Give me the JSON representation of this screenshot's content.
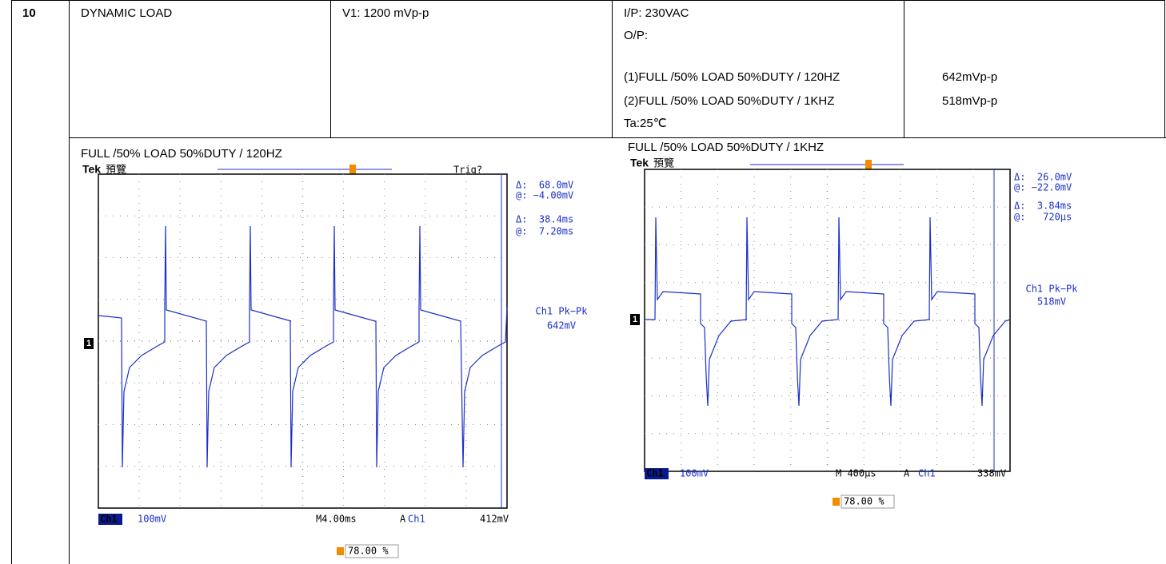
{
  "table": {
    "row_number": "10",
    "item": "DYNAMIC LOAD",
    "spec": "V1: 1200 mVp-p",
    "conditions": [
      "I/P: 230VAC",
      "O/P:",
      "(1)FULL /50% LOAD 50%DUTY / 120HZ",
      "(2)FULL /50% LOAD 50%DUTY / 1KHZ",
      "Ta:25℃"
    ],
    "results": [
      "642mVp-p",
      "518mVp-p"
    ]
  },
  "scopes": [
    {
      "caption": "FULL /50% LOAD 50%DUTY / 120HZ",
      "brand": "Tek",
      "mode": "預覽",
      "trigger_status": "Trig?",
      "marker": "1",
      "readouts": [
        "Δ:  68.0mV",
        "@: −4.00mV",
        "Δ:  38.4ms",
        "@:  7.20ms"
      ],
      "measure_label": "Ch1 Pk−Pk",
      "measure_value": "642mV",
      "channel": "Ch1",
      "scale": "100mV",
      "timebase": "M4.00ms",
      "trigger_mode": "A",
      "trigger_source": "Ch1",
      "trigger_level": "412mV",
      "trigger_position": "78.00 %"
    },
    {
      "caption": "FULL /50% LOAD 50%DUTY / 1KHZ",
      "brand": "Tek",
      "mode": "預覽",
      "marker": "1",
      "readouts": [
        "Δ:  26.0mV",
        "@: −22.0mV",
        "Δ:  3.84ms",
        "@:   720µs"
      ],
      "measure_label": "Ch1 Pk−Pk",
      "measure_value": "518mV",
      "channel": "Ch1",
      "scale": "100mV",
      "timebase": "M 400µs",
      "trigger_mode": "A",
      "trigger_source": "Ch1",
      "trigger_level": "338mV",
      "trigger_position": "78.00 %"
    }
  ]
}
